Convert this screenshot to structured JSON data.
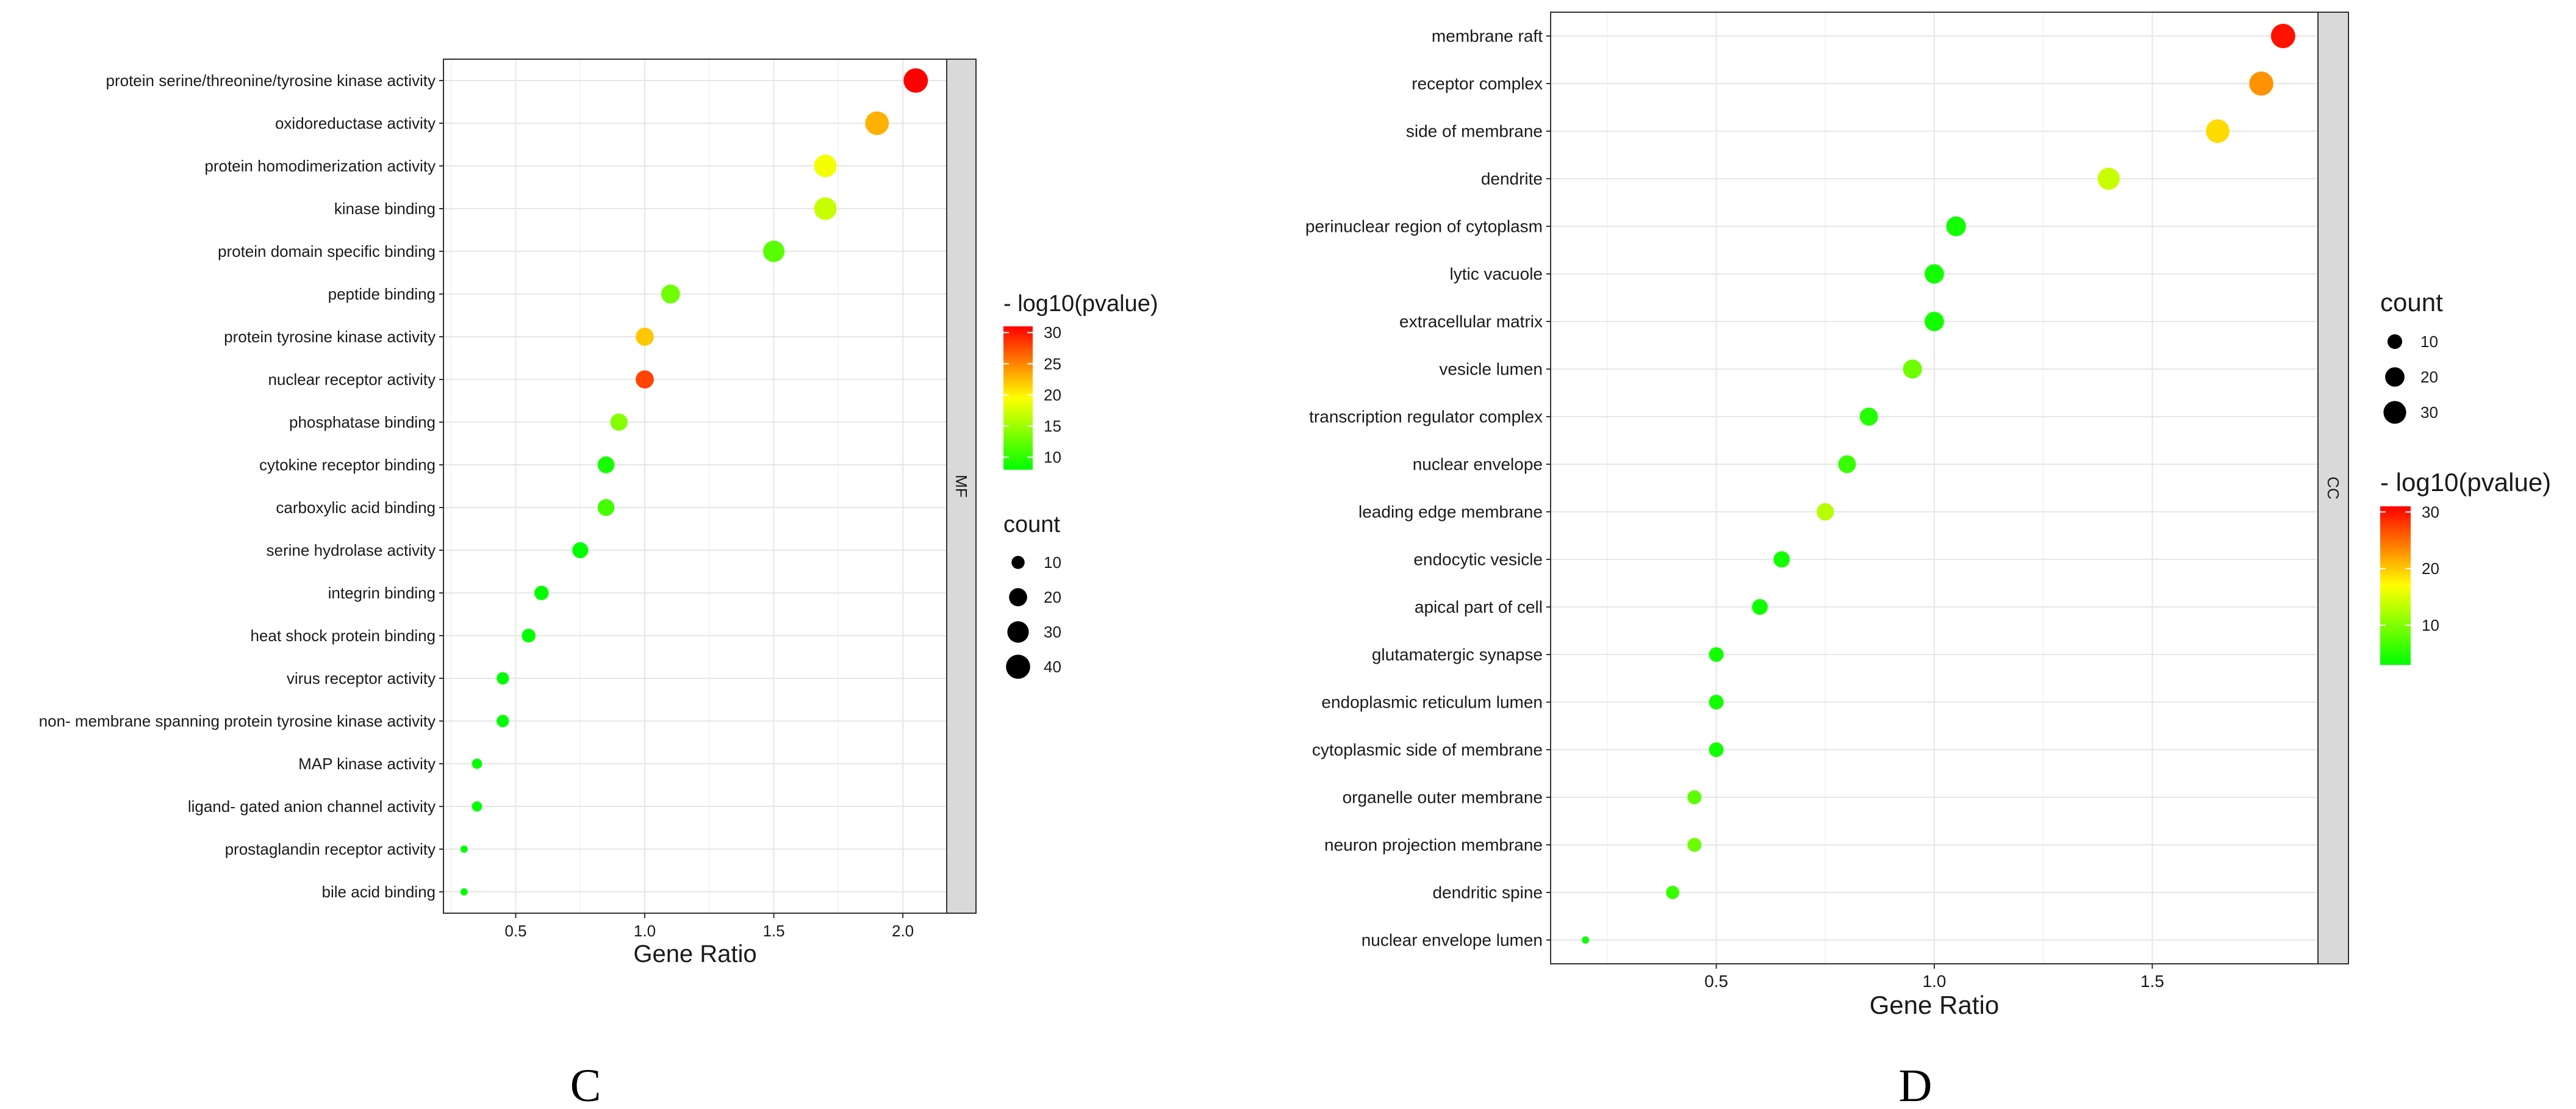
{
  "chart_data": [
    {
      "type": "scatter",
      "panel_label": "C",
      "facet_label": "MF",
      "xlabel": "Gene Ratio",
      "ylabel": "",
      "xlim": [
        0.22,
        2.17
      ],
      "xticks": [
        0.5,
        1.0,
        1.5,
        2.0
      ],
      "xtick_labels": [
        "0.5",
        "1.0",
        "1.5",
        "2.0"
      ],
      "grid": true,
      "categories": [
        "protein serine/threonine/tyrosine kinase activity",
        "oxidoreductase activity",
        "protein homodimerization activity",
        "kinase binding",
        "protein domain specific binding",
        "peptide binding",
        "protein tyrosine kinase activity",
        "nuclear receptor activity",
        "phosphatase binding",
        "cytokine receptor binding",
        "carboxylic acid binding",
        "serine hydrolase activity",
        "integrin binding",
        "heat shock protein binding",
        "virus receptor activity",
        "non- membrane spanning protein tyrosine kinase activity",
        "MAP kinase activity",
        "ligand- gated anion channel activity",
        "prostaglandin receptor activity",
        "bile acid binding"
      ],
      "x": [
        2.05,
        1.9,
        1.7,
        1.7,
        1.5,
        1.1,
        1.0,
        1.0,
        0.9,
        0.85,
        0.85,
        0.75,
        0.6,
        0.55,
        0.45,
        0.45,
        0.35,
        0.35,
        0.3,
        0.3
      ],
      "count": [
        41,
        38,
        34,
        34,
        30,
        22,
        20,
        20,
        18,
        17,
        17,
        15,
        12,
        11,
        9,
        9,
        7,
        7,
        6,
        6
      ],
      "neg_log10_pvalue": [
        31,
        23,
        19,
        17,
        12,
        13,
        22,
        28,
        14,
        9,
        11,
        8,
        6,
        6,
        5,
        5,
        4,
        4,
        4,
        4
      ],
      "legend_order": [
        "color",
        "size"
      ],
      "color_legend": {
        "title": "- log10(pvalue)",
        "range": [
          8,
          31
        ],
        "ticks": [
          10,
          15,
          20,
          25,
          30
        ],
        "tick_labels": [
          "10",
          "15",
          "20",
          "25",
          "30"
        ],
        "colors": [
          "#00ff00",
          "#ffff00",
          "#ff0000"
        ]
      },
      "size_legend": {
        "title": "count",
        "values": [
          10,
          20,
          30,
          40
        ],
        "labels": [
          "10",
          "20",
          "30",
          "40"
        ],
        "range": [
          6,
          41
        ]
      }
    },
    {
      "type": "scatter",
      "panel_label": "D",
      "facet_label": "CC",
      "xlabel": "Gene Ratio",
      "ylabel": "",
      "xlim": [
        0.12,
        1.88
      ],
      "xticks": [
        0.5,
        1.0,
        1.5
      ],
      "xtick_labels": [
        "0.5",
        "1.0",
        "1.5"
      ],
      "grid": true,
      "categories": [
        "membrane raft",
        "receptor complex",
        "side of membrane",
        "dendrite",
        "perinuclear region of cytoplasm",
        "lytic vacuole",
        "extracellular matrix",
        "vesicle lumen",
        "transcription regulator complex",
        "nuclear envelope",
        "leading edge membrane",
        "endocytic vesicle",
        "apical part of cell",
        "glutamatergic synapse",
        "endoplasmic reticulum lumen",
        "cytoplasmic side of membrane",
        "organelle outer membrane",
        "neuron projection membrane",
        "dendritic spine",
        "nuclear envelope lumen"
      ],
      "x": [
        1.8,
        1.75,
        1.65,
        1.4,
        1.05,
        1.0,
        1.0,
        0.95,
        0.85,
        0.8,
        0.75,
        0.65,
        0.6,
        0.5,
        0.5,
        0.5,
        0.45,
        0.45,
        0.4,
        0.2
      ],
      "count": [
        36,
        35,
        33,
        28,
        21,
        20,
        20,
        19,
        17,
        16,
        15,
        13,
        12,
        10,
        10,
        10,
        9,
        9,
        8,
        4
      ],
      "neg_log10_pvalue": [
        30,
        23,
        19,
        14,
        4,
        4,
        4,
        9,
        5,
        6,
        13,
        4,
        4,
        4,
        4,
        4,
        8,
        9,
        6,
        4
      ],
      "legend_order": [
        "size",
        "color"
      ],
      "color_legend": {
        "title": "- log10(pvalue)",
        "range": [
          3,
          31
        ],
        "ticks": [
          10,
          20,
          30
        ],
        "tick_labels": [
          "10",
          "20",
          "30"
        ],
        "colors": [
          "#00ff00",
          "#ffff00",
          "#ff0000"
        ]
      },
      "size_legend": {
        "title": "count",
        "values": [
          10,
          20,
          30
        ],
        "labels": [
          "10",
          "20",
          "30"
        ],
        "range": [
          4,
          36
        ]
      }
    }
  ]
}
